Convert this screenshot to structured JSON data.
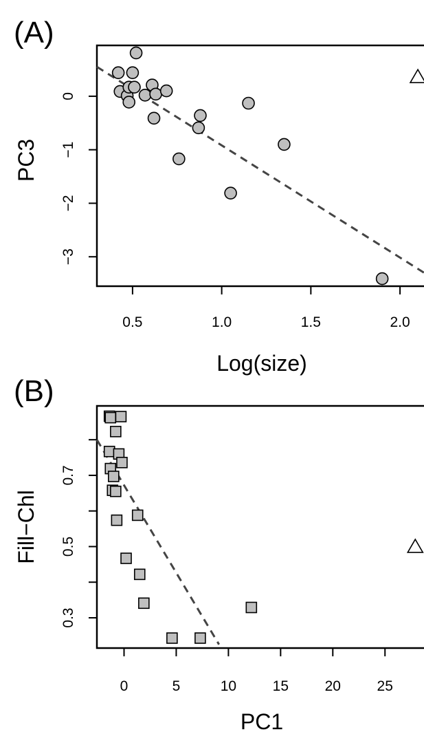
{
  "chart_data": [
    {
      "type": "scatter",
      "panel_label": "(A)",
      "xlabel": "Log(size)",
      "ylabel": "PC3",
      "xlim": [
        0.3,
        2.15
      ],
      "ylim": [
        -3.55,
        0.95
      ],
      "xticks": [
        0.5,
        1.0,
        1.5,
        2.0
      ],
      "xtick_labels": [
        "0.5",
        "1.0",
        "1.5",
        "2.0"
      ],
      "yticks": [
        -3,
        -2,
        -1,
        0
      ],
      "ytick_labels": [
        "−3",
        "−2",
        "−1",
        "0"
      ],
      "marker": "circle",
      "point_color": "#bfbfbf",
      "points": [
        {
          "x": 0.42,
          "y": 0.44
        },
        {
          "x": 0.43,
          "y": 0.09
        },
        {
          "x": 0.47,
          "y": 0.01
        },
        {
          "x": 0.48,
          "y": -0.11
        },
        {
          "x": 0.48,
          "y": 0.17
        },
        {
          "x": 0.5,
          "y": 0.44
        },
        {
          "x": 0.51,
          "y": 0.17
        },
        {
          "x": 0.52,
          "y": 0.81
        },
        {
          "x": 0.57,
          "y": 0.02
        },
        {
          "x": 0.61,
          "y": 0.21
        },
        {
          "x": 0.62,
          "y": -0.41
        },
        {
          "x": 0.63,
          "y": 0.04
        },
        {
          "x": 0.69,
          "y": 0.1
        },
        {
          "x": 0.76,
          "y": -1.17
        },
        {
          "x": 0.87,
          "y": -0.59
        },
        {
          "x": 0.88,
          "y": -0.36
        },
        {
          "x": 1.05,
          "y": -1.81
        },
        {
          "x": 1.15,
          "y": -0.13
        },
        {
          "x": 1.35,
          "y": -0.9
        },
        {
          "x": 1.9,
          "y": -3.41
        }
      ],
      "highlight": {
        "x": 2.1,
        "y": 0.37,
        "marker": "triangle-open"
      },
      "fit_line": {
        "x": [
          0.3,
          2.15
        ],
        "y": [
          0.55,
          -3.33
        ],
        "style": "dashed"
      }
    },
    {
      "type": "scatter",
      "panel_label": "(B)",
      "xlabel": "PC1",
      "ylabel": "Fill−Chl",
      "xlim": [
        -2.6,
        29.0
      ],
      "ylim": [
        0.215,
        0.895
      ],
      "xticks": [
        0,
        5,
        10,
        15,
        20,
        25
      ],
      "xtick_labels": [
        "0",
        "5",
        "10",
        "15",
        "20",
        "25"
      ],
      "yticks": [
        0.3,
        0.5,
        0.7
      ],
      "ytick_labels": [
        "0.3",
        "0.5",
        "0.7"
      ],
      "minor_yticks": [
        0.4,
        0.6,
        0.8
      ],
      "marker": "square",
      "point_color": "#bfbfbf",
      "points": [
        {
          "x": -1.4,
          "y": 0.866
        },
        {
          "x": -1.3,
          "y": 0.862
        },
        {
          "x": -0.3,
          "y": 0.865
        },
        {
          "x": -0.8,
          "y": 0.823
        },
        {
          "x": -1.4,
          "y": 0.767
        },
        {
          "x": -0.5,
          "y": 0.76
        },
        {
          "x": -0.2,
          "y": 0.736
        },
        {
          "x": -1.3,
          "y": 0.719
        },
        {
          "x": -1.0,
          "y": 0.697
        },
        {
          "x": -1.1,
          "y": 0.658
        },
        {
          "x": -0.8,
          "y": 0.655
        },
        {
          "x": 1.3,
          "y": 0.588
        },
        {
          "x": -0.7,
          "y": 0.574
        },
        {
          "x": 0.2,
          "y": 0.467
        },
        {
          "x": 1.5,
          "y": 0.422
        },
        {
          "x": 1.9,
          "y": 0.341
        },
        {
          "x": 12.2,
          "y": 0.329
        },
        {
          "x": 4.6,
          "y": 0.243
        },
        {
          "x": 7.3,
          "y": 0.243
        }
      ],
      "highlight": {
        "x": 27.9,
        "y": 0.501,
        "marker": "triangle-open"
      },
      "fit_line": {
        "x": [
          -2.6,
          9.1
        ],
        "y": [
          0.8,
          0.225
        ],
        "style": "dashed"
      }
    }
  ]
}
